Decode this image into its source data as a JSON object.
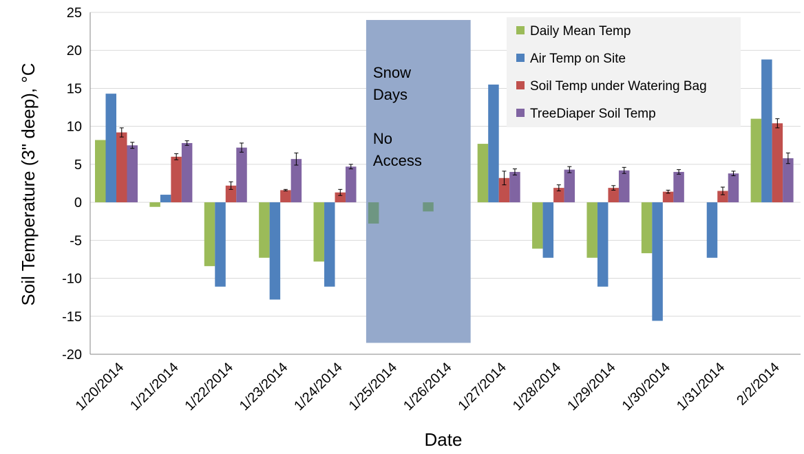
{
  "chart_data": {
    "type": "bar",
    "title": "",
    "xlabel": "Date",
    "ylabel": "Soil Temperature (3\" deep), °C",
    "ylim": [
      -20,
      25
    ],
    "yticks": [
      -20,
      -15,
      -10,
      -5,
      0,
      5,
      10,
      15,
      20,
      25
    ],
    "grid": "horizontal",
    "legend_position": "top-right",
    "categories": [
      "1/20/2014",
      "1/21/2014",
      "1/22/2014",
      "1/23/2014",
      "1/24/2014",
      "1/25/2014",
      "1/26/2014",
      "1/27/2014",
      "1/28/2014",
      "1/29/2014",
      "1/30/2014",
      "1/31/2014",
      "2/2/2014"
    ],
    "series": [
      {
        "name": "Daily Mean Temp",
        "color": "#9BBB59",
        "values": [
          8.2,
          -0.6,
          -8.4,
          -7.3,
          -7.8,
          -2.8,
          -1.2,
          7.7,
          -6.1,
          -7.3,
          -6.7,
          0,
          11.0
        ]
      },
      {
        "name": "Air Temp on Site",
        "color": "#4F81BD",
        "values": [
          14.3,
          1.0,
          -11.1,
          -12.8,
          -11.1,
          null,
          null,
          15.5,
          -7.3,
          -11.1,
          -15.6,
          -7.3,
          18.8
        ]
      },
      {
        "name": "Soil Temp under Watering Bag",
        "color": "#C0504D",
        "values": [
          9.2,
          6.0,
          2.2,
          1.6,
          1.3,
          null,
          null,
          3.2,
          1.9,
          1.9,
          1.4,
          1.5,
          10.4
        ],
        "errors": [
          0.6,
          0.4,
          0.5,
          0.1,
          0.4,
          null,
          null,
          0.9,
          0.4,
          0.3,
          0.2,
          0.5,
          0.6
        ]
      },
      {
        "name": "TreeDiaper Soil Temp",
        "color": "#8064A2",
        "values": [
          7.5,
          7.8,
          7.2,
          5.7,
          4.7,
          null,
          null,
          4.0,
          4.3,
          4.2,
          4.0,
          3.8,
          5.8
        ],
        "errors": [
          0.4,
          0.3,
          0.6,
          0.8,
          0.3,
          null,
          null,
          0.4,
          0.4,
          0.4,
          0.3,
          0.3,
          0.7
        ]
      }
    ],
    "annotation": {
      "lines": [
        "Snow",
        "Days",
        "",
        "No",
        "Access"
      ],
      "categories_spanned": [
        "1/25/2014",
        "1/26/2014"
      ],
      "y_range": [
        -18.5,
        24
      ],
      "color": "#95A9CB"
    }
  }
}
